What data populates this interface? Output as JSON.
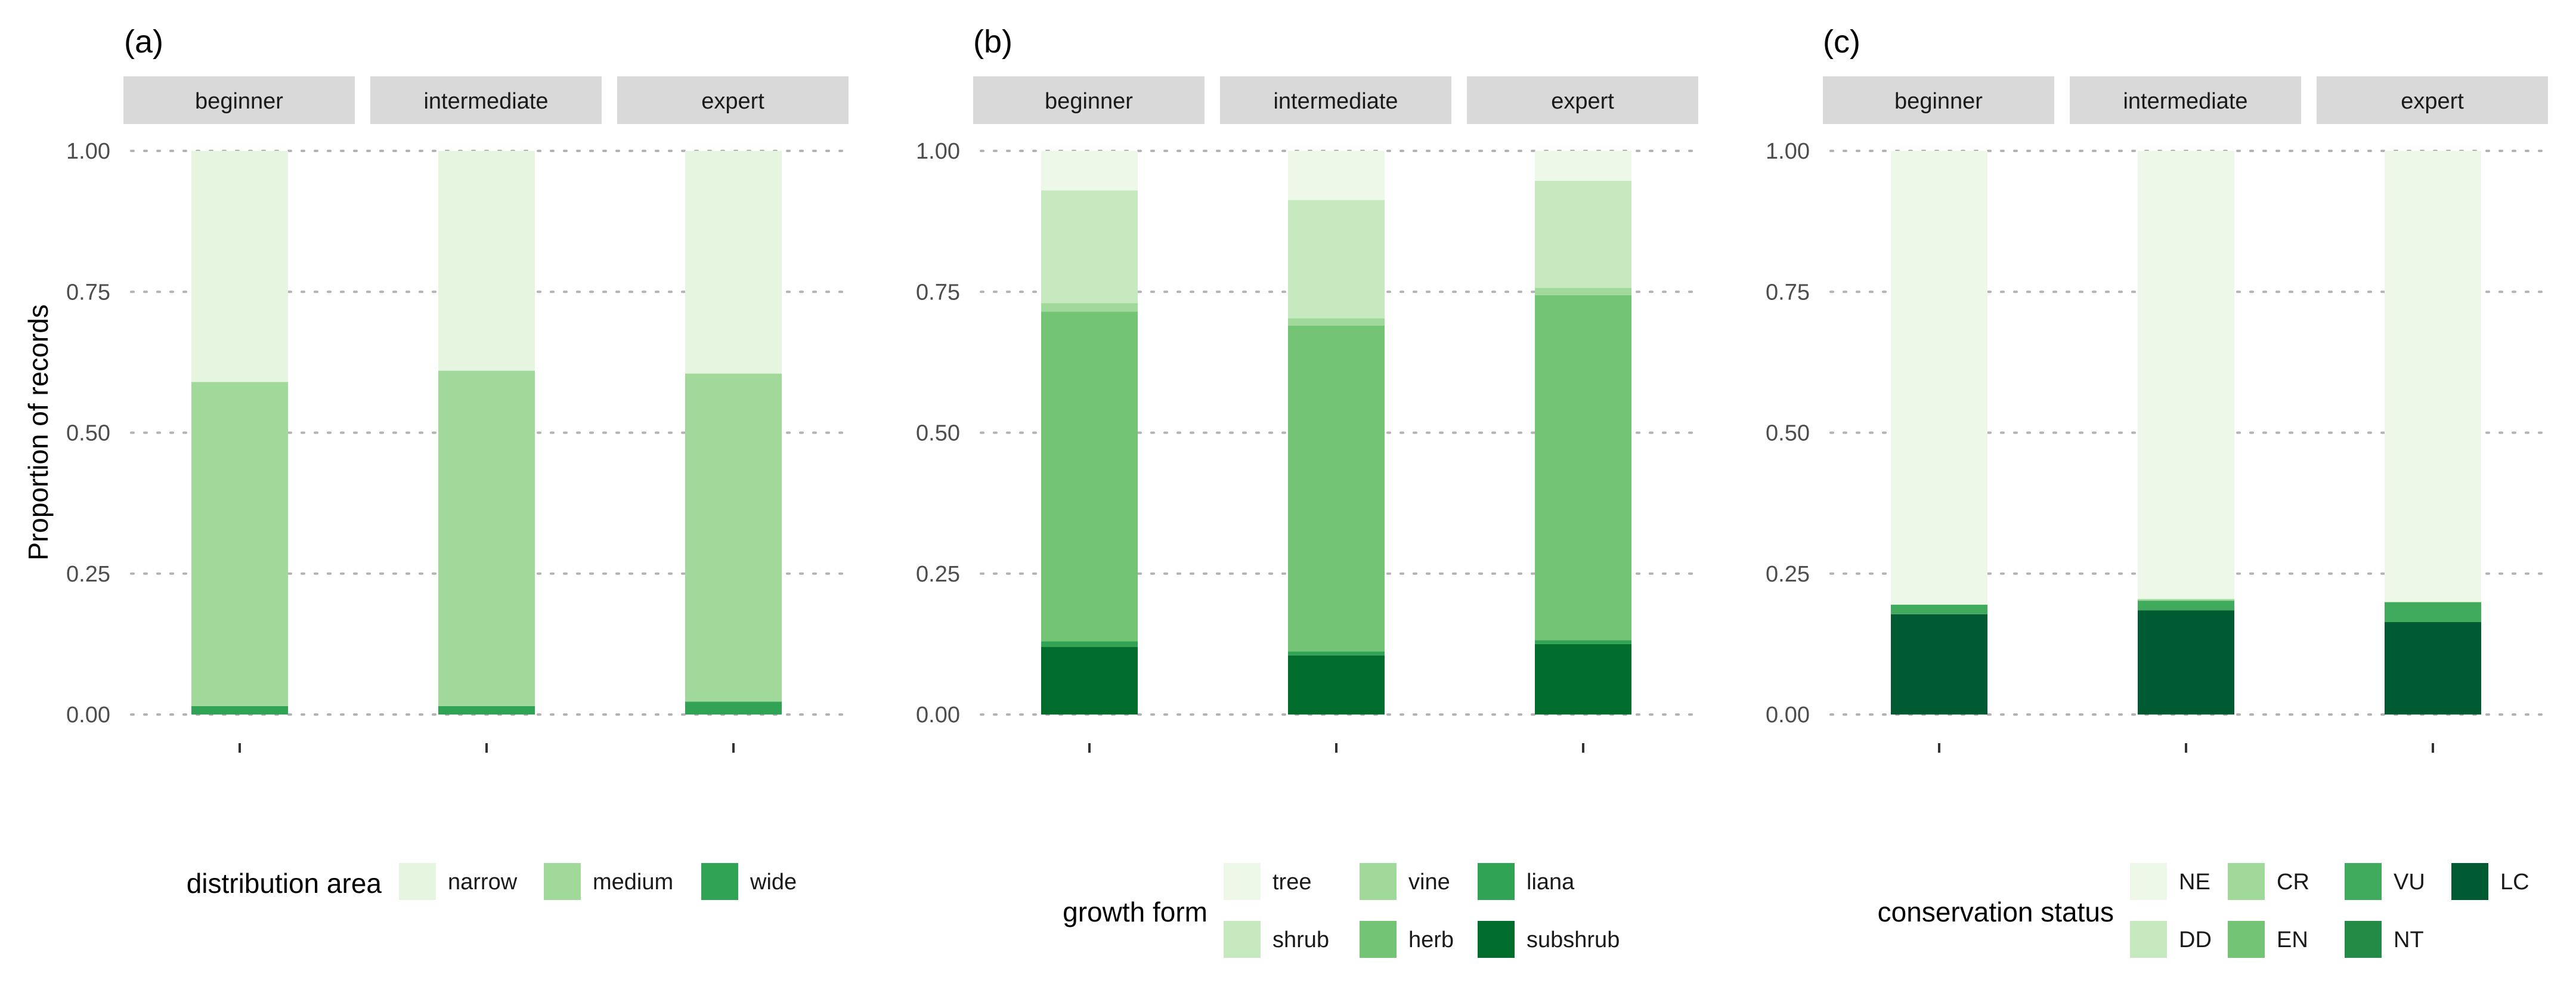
{
  "colors": {
    "strip_background": "#d9d9d9",
    "gridline": "#b3b3b3",
    "segment_palette": {
      "narrow": "#e5f5e0",
      "medium": "#a1d99b",
      "wide": "#31a354",
      "tree": "#edf8e9",
      "shrub": "#c7e9c0",
      "vine": "#a1d99b",
      "herb": "#74c476",
      "liana": "#31a354",
      "subshrub": "#006d2c",
      "NE": "#edf8e9",
      "DD": "#c7e9c0",
      "CR": "#a1d99b",
      "EN": "#74c476",
      "VU": "#41ab5d",
      "NT": "#238b45",
      "LC": "#005a32"
    }
  },
  "y_axis_title": "Proportion of records",
  "chart_data": [
    {
      "type": "bar",
      "stacked": true,
      "panel_label": "(a)",
      "facets": [
        "beginner",
        "intermediate",
        "expert"
      ],
      "ylabel": "Proportion of records",
      "ylim": [
        0,
        1
      ],
      "yticks": [
        "0.00",
        "0.25",
        "0.50",
        "0.75",
        "1.00"
      ],
      "grid": "horizontal dotted",
      "legend_title": "distribution area",
      "legend_position": "bottom",
      "legend_columns": 3,
      "series": [
        {
          "name": "narrow",
          "color": "#e5f5e0",
          "values": [
            0.41,
            0.39,
            0.395
          ]
        },
        {
          "name": "medium",
          "color": "#a1d99b",
          "values": [
            0.575,
            0.595,
            0.582
          ]
        },
        {
          "name": "wide",
          "color": "#31a354",
          "values": [
            0.015,
            0.015,
            0.023
          ]
        }
      ]
    },
    {
      "type": "bar",
      "stacked": true,
      "panel_label": "(b)",
      "facets": [
        "beginner",
        "intermediate",
        "expert"
      ],
      "ylim": [
        0,
        1
      ],
      "yticks": [
        "0.00",
        "0.25",
        "0.50",
        "0.75",
        "1.00"
      ],
      "grid": "horizontal dotted",
      "legend_title": "growth form",
      "legend_position": "bottom",
      "legend_columns": 3,
      "series": [
        {
          "name": "tree",
          "color": "#edf8e9",
          "values": [
            0.07,
            0.087,
            0.053
          ]
        },
        {
          "name": "shrub",
          "color": "#c7e9c0",
          "values": [
            0.2,
            0.21,
            0.19
          ]
        },
        {
          "name": "vine",
          "color": "#a1d99b",
          "values": [
            0.015,
            0.013,
            0.013
          ]
        },
        {
          "name": "herb",
          "color": "#74c476",
          "values": [
            0.585,
            0.578,
            0.612
          ]
        },
        {
          "name": "liana",
          "color": "#31a354",
          "values": [
            0.01,
            0.007,
            0.007
          ]
        },
        {
          "name": "subshrub",
          "color": "#006d2c",
          "values": [
            0.12,
            0.105,
            0.125
          ]
        }
      ]
    },
    {
      "type": "bar",
      "stacked": true,
      "panel_label": "(c)",
      "facets": [
        "beginner",
        "intermediate",
        "expert"
      ],
      "ylim": [
        0,
        1
      ],
      "yticks": [
        "0.00",
        "0.25",
        "0.50",
        "0.75",
        "1.00"
      ],
      "grid": "horizontal dotted",
      "legend_title": "conservation status",
      "legend_position": "bottom",
      "legend_columns": 4,
      "series": [
        {
          "name": "NE",
          "color": "#edf8e9",
          "values": [
            0.805,
            0.795,
            0.8
          ]
        },
        {
          "name": "DD",
          "color": "#c7e9c0",
          "values": [
            0.0,
            0.0,
            0.0
          ]
        },
        {
          "name": "CR",
          "color": "#a1d99b",
          "values": [
            0.0,
            0.003,
            0.001
          ]
        },
        {
          "name": "EN",
          "color": "#74c476",
          "values": [
            0.0,
            0.0,
            0.0
          ]
        },
        {
          "name": "VU",
          "color": "#41ab5d",
          "values": [
            0.017,
            0.017,
            0.035
          ]
        },
        {
          "name": "NT",
          "color": "#238b45",
          "values": [
            0.0,
            0.0,
            0.0
          ]
        },
        {
          "name": "LC",
          "color": "#005a32",
          "values": [
            0.178,
            0.185,
            0.164
          ]
        }
      ]
    }
  ]
}
